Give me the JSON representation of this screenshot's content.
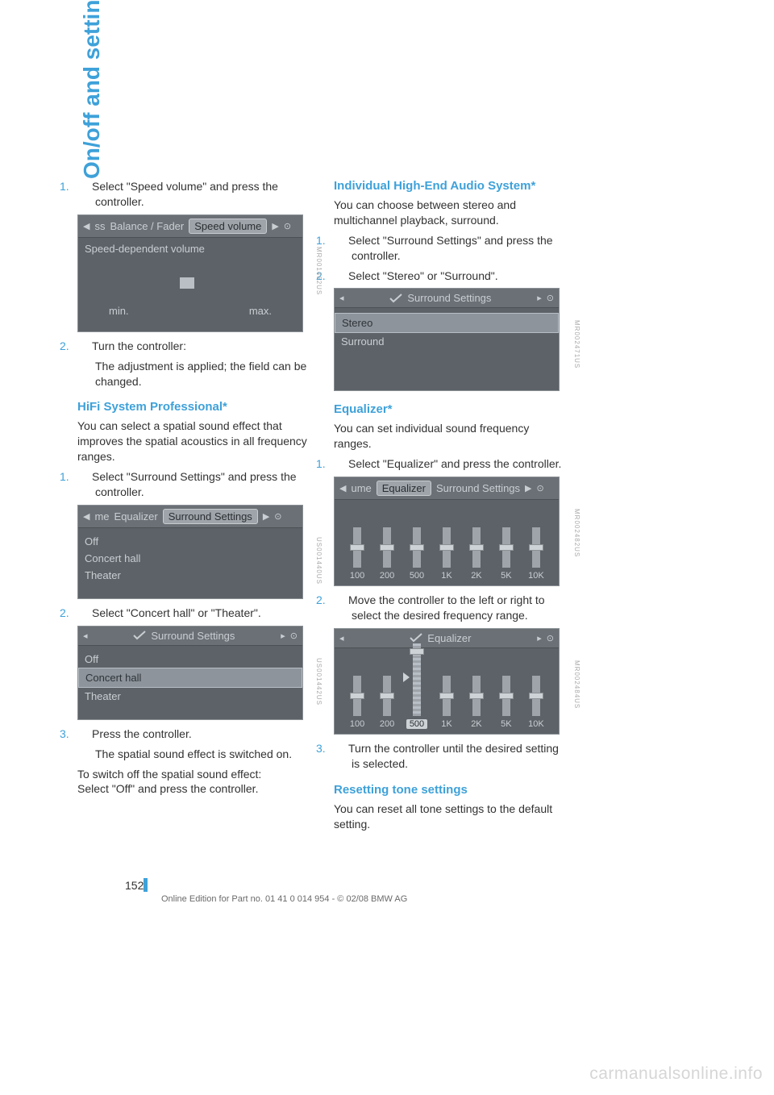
{
  "side_tab": "On/off and settings",
  "page_number": "152",
  "footer": "Online Edition for Part no. 01 41 0 014 954  - © 02/08 BMW AG",
  "watermark": "carmanualsonline.info",
  "colors": {
    "accent": "#3ea1d9",
    "body_text": "#323232",
    "shot_bg": "#5d6268",
    "shot_text": "#c9ced3",
    "shot_sel_bg": "#8d949b",
    "watermark": "#d6d6d6"
  },
  "left": {
    "step1": {
      "num": "1.",
      "text": "Select \"Speed volume\" and press the controller."
    },
    "shot1": {
      "tabs_left": "ss",
      "tab1": "Balance / Fader",
      "tab_sel": "Speed volume",
      "body_label": "Speed-dependent volume",
      "min": "min.",
      "max": "max.",
      "code": "MR001462US"
    },
    "step2": {
      "num": "2.",
      "text": "Turn the controller:"
    },
    "step2_sub": "The adjustment is applied; the field can be changed.",
    "h_hifi": "HiFi System Professional*",
    "hifi_p": "You can select a spatial sound effect that improves the spatial acoustics in all frequency ranges.",
    "hifi_s1": {
      "num": "1.",
      "text": "Select \"Surround Settings\" and press the controller."
    },
    "shot2": {
      "tabs_left": "me",
      "tab1": "Equalizer",
      "tab_sel": "Surround Settings",
      "rows": [
        "Off",
        "Concert hall",
        "Theater"
      ],
      "code": "US001440US"
    },
    "hifi_s2": {
      "num": "2.",
      "text": "Select \"Concert hall\" or \"Theater\"."
    },
    "shot3": {
      "crumb": "Surround Settings",
      "rows": [
        "Off",
        "Concert hall",
        "Theater"
      ],
      "sel_index": 1,
      "code": "US001442US"
    },
    "hifi_s3": {
      "num": "3.",
      "text": "Press the controller."
    },
    "hifi_s3_sub": "The spatial sound effect is switched on.",
    "hifi_off": "To switch off the spatial sound effect:\nSelect \"Off\" and press the controller."
  },
  "right": {
    "h_ind": "Individual High-End Audio System*",
    "ind_p": "You can choose between stereo and multichannel playback, surround.",
    "ind_s1": {
      "num": "1.",
      "text": "Select \"Surround Settings\" and press the controller."
    },
    "ind_s2": {
      "num": "2.",
      "text": "Select \"Stereo\" or \"Surround\"."
    },
    "shot4": {
      "crumb": "Surround Settings",
      "rows": [
        "Stereo",
        "Surround"
      ],
      "sel_index": 0,
      "code": "MR002471US"
    },
    "h_eq": "Equalizer*",
    "eq_p": "You can set individual sound frequency ranges.",
    "eq_s1": {
      "num": "1.",
      "text": "Select \"Equalizer\" and press the controller."
    },
    "shot5": {
      "tabs_left": "ume",
      "tab_sel": "Equalizer",
      "tab2": "Surround Settings",
      "bands": [
        "100",
        "200",
        "500",
        "1K",
        "2K",
        "5K",
        "10K"
      ],
      "heights": [
        50,
        50,
        50,
        50,
        50,
        50,
        50
      ],
      "thumb_pos": [
        50,
        50,
        50,
        50,
        50,
        50,
        50
      ],
      "code": "MR002482US"
    },
    "eq_s2": {
      "num": "2.",
      "text": "Move the controller to the left or right to select the desired frequency range."
    },
    "shot6": {
      "crumb": "Equalizer",
      "bands": [
        "100",
        "200",
        "500",
        "1K",
        "2K",
        "5K",
        "10K"
      ],
      "sel_band": 2,
      "heights": [
        50,
        50,
        90,
        50,
        50,
        50,
        50
      ],
      "thumb_pos": [
        50,
        50,
        8,
        50,
        50,
        50,
        50
      ],
      "code": "MR002484US"
    },
    "eq_s3": {
      "num": "3.",
      "text": "Turn the controller until the desired setting is selected."
    },
    "h_reset": "Resetting tone settings",
    "reset_p": "You can reset all tone settings to the default setting."
  }
}
